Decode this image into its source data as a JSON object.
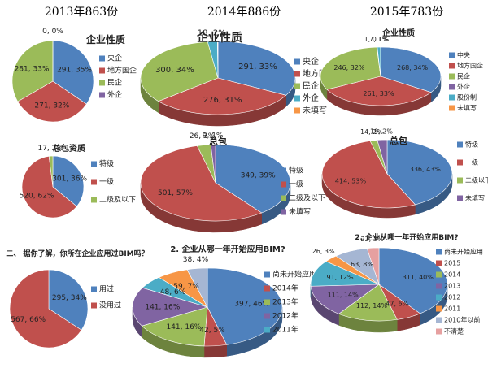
{
  "headers": [
    "2013年863份",
    "2014年886份",
    "2015年783份"
  ],
  "chart_data": [
    {
      "type": "pie",
      "title": "企业性质",
      "categories": [
        "央企",
        "地方国企",
        "民企",
        "外企"
      ],
      "values": [
        291,
        271,
        281,
        0
      ],
      "value_labels": [
        "291, 35%",
        "271, 32%",
        "281, 33%",
        "0, 0%"
      ],
      "colors": [
        "#4f81bd",
        "#c0504d",
        "#9bbb59",
        "#8064a2"
      ]
    },
    {
      "type": "pie",
      "title": "总包资质",
      "categories": [
        "特级",
        "一级",
        "二级及以下"
      ],
      "values": [
        301,
        520,
        17
      ],
      "value_labels": [
        "301, 36%",
        "520, 62%",
        "17, 2%"
      ],
      "colors": [
        "#4f81bd",
        "#c0504d",
        "#9bbb59"
      ]
    },
    {
      "type": "pie",
      "title": "二、 据你了解，你所在企业应用过BIM吗？",
      "categories": [
        "用过",
        "没用过"
      ],
      "values": [
        295,
        567
      ],
      "value_labels": [
        "295, 34%",
        "567, 66%"
      ],
      "colors": [
        "#4f81bd",
        "#c0504d"
      ]
    },
    {
      "type": "pie",
      "title": "企业性质",
      "categories": [
        "央企",
        "地方国企",
        "民企",
        "外企",
        "未填写"
      ],
      "values": [
        291,
        276,
        300,
        18,
        1
      ],
      "value_labels": [
        "291, 33%",
        "276, 31%",
        "300, 34%",
        "18, 2%",
        null
      ],
      "colors": [
        "#4f81bd",
        "#c0504d",
        "#9bbb59",
        "#4bacc6",
        "#f79646"
      ]
    },
    {
      "type": "pie",
      "title": "总包",
      "categories": [
        "特级",
        "一级",
        "二级及以下",
        "未填写"
      ],
      "values": [
        349,
        501,
        26,
        9
      ],
      "value_labels": [
        "349, 39%",
        "501, 57%",
        "26, 3%",
        "9, 1%"
      ],
      "colors": [
        "#4f81bd",
        "#c0504d",
        "#9bbb59",
        "#8064a2"
      ]
    },
    {
      "type": "pie",
      "title": "2. 企业从哪一年开始应用BIM?",
      "categories": [
        "尚未开始应用",
        "2014年",
        "2013年",
        "2012年",
        "2011年",
        null,
        null
      ],
      "values": [
        397,
        42,
        141,
        141,
        48,
        59,
        38
      ],
      "value_labels": [
        "397, 46%",
        "42, 5%",
        "141, 16%",
        "141, 16%",
        "48, 6%",
        "59, 7%",
        "38, 4%"
      ],
      "colors": [
        "#4f81bd",
        "#c0504d",
        "#9bbb59",
        "#8064a2",
        "#4bacc6",
        "#f79646",
        "#a5b6d3"
      ]
    },
    {
      "type": "pie",
      "title": "企业性质",
      "categories": [
        "中央",
        "地方国企",
        "民企",
        "外企",
        "股份制",
        "未填写"
      ],
      "values": [
        268,
        261,
        246,
        1,
        7,
        0
      ],
      "value_labels": [
        "268, 34%",
        "261, 33%",
        "246, 32%",
        "1, 0.1%",
        "7, 1%",
        null
      ],
      "colors": [
        "#4f81bd",
        "#c0504d",
        "#9bbb59",
        "#8064a2",
        "#4bacc6",
        "#f79646"
      ]
    },
    {
      "type": "pie",
      "title": "总包",
      "categories": [
        "特级",
        "一级",
        "二级以下",
        "未填写"
      ],
      "values": [
        336,
        414,
        14,
        19
      ],
      "value_labels": [
        "336, 43%",
        "414, 53%",
        "14, 2%",
        "19, 2%"
      ],
      "colors": [
        "#4f81bd",
        "#c0504d",
        "#9bbb59",
        "#8064a2"
      ]
    },
    {
      "type": "pie",
      "title": "2. 企业从哪一年开始应用BIM?",
      "categories": [
        "尚未开始应用",
        "2015",
        "2014",
        "2013",
        "2012",
        "2011",
        "2010年以前",
        "不清楚"
      ],
      "values": [
        311,
        47,
        112,
        111,
        91,
        26,
        63,
        22
      ],
      "value_labels": [
        "311, 40%",
        "47, 6%",
        "112, 14%",
        "111, 14%",
        "91, 12%",
        "26, 3%",
        "63, 8%",
        "22, 3%"
      ],
      "colors": [
        "#4f81bd",
        "#c0504d",
        "#9bbb59",
        "#8064a2",
        "#4bacc6",
        "#f79646",
        "#a5b6d3",
        "#e6a0a0"
      ]
    }
  ]
}
